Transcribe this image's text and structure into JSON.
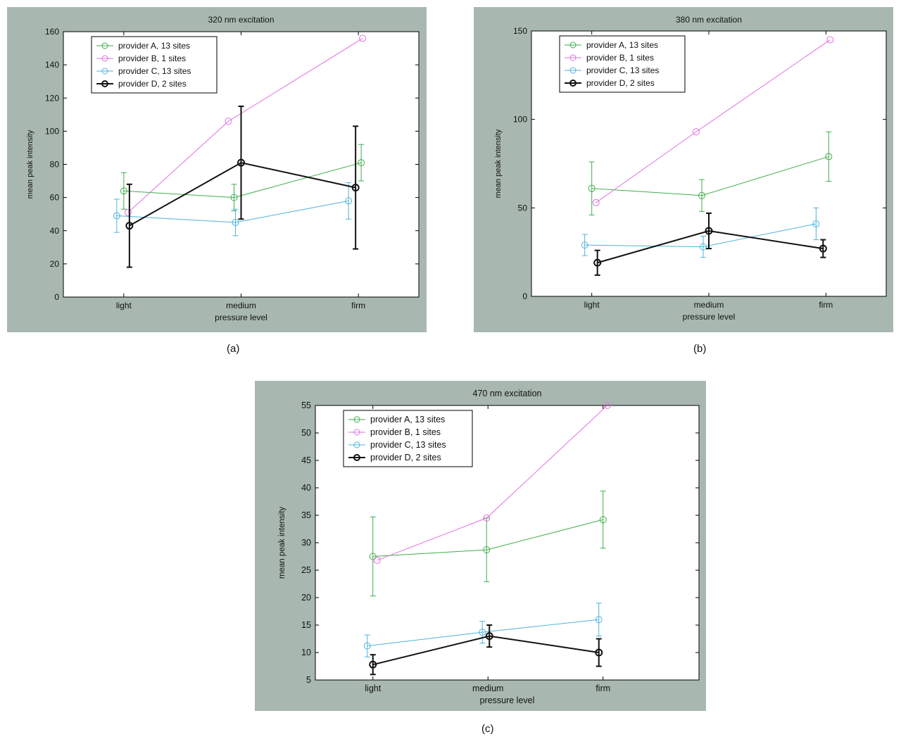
{
  "captions": {
    "a": "(a)",
    "b": "(b)",
    "c": "(c)"
  },
  "colors": {
    "frame": "#a8b8b0",
    "plot_bg": "#ffffff",
    "axis": "#000000"
  },
  "chart_data": [
    {
      "type": "line",
      "title": "320 nm excitation",
      "xlabel": "pressure level",
      "ylabel": "mean peak intensity",
      "categories": [
        "light",
        "medium",
        "firm"
      ],
      "ylim": [
        0,
        160
      ],
      "yticks": [
        "0",
        "20",
        "40",
        "60",
        "80",
        "100",
        "120",
        "140",
        "160"
      ],
      "legend_position": "top-left",
      "series": [
        {
          "name": "provider A, 13 sites",
          "color": "#3fae49",
          "values": [
            64,
            60,
            81
          ],
          "err": [
            11,
            8,
            11
          ]
        },
        {
          "name": "provider B, 1 sites",
          "color": "#e070e0",
          "values": [
            51,
            106,
            156
          ],
          "err": null
        },
        {
          "name": "provider C, 13 sites",
          "color": "#4fb3dd",
          "values": [
            49,
            45,
            58
          ],
          "err": [
            10,
            8,
            11
          ]
        },
        {
          "name": "provider D, 2 sites",
          "color": "#111111",
          "values": [
            43,
            81,
            66
          ],
          "err": [
            25,
            34,
            37
          ]
        }
      ]
    },
    {
      "type": "line",
      "title": "380 nm excitation",
      "xlabel": "pressure level",
      "ylabel": "mean peak intensity",
      "categories": [
        "light",
        "medium",
        "firm"
      ],
      "ylim": [
        0,
        150
      ],
      "yticks": [
        "0",
        "50",
        "100",
        "150"
      ],
      "legend_position": "top-left",
      "series": [
        {
          "name": "provider A, 13 sites",
          "color": "#3fae49",
          "values": [
            61,
            57,
            79
          ],
          "err": [
            15,
            9,
            14
          ]
        },
        {
          "name": "provider B, 1 sites",
          "color": "#e070e0",
          "values": [
            53,
            93,
            145
          ],
          "err": null
        },
        {
          "name": "provider C, 13 sites",
          "color": "#4fb3dd",
          "values": [
            29,
            28,
            41
          ],
          "err": [
            6,
            6,
            9
          ]
        },
        {
          "name": "provider D, 2 sites",
          "color": "#111111",
          "values": [
            19,
            37,
            27
          ],
          "err": [
            7,
            10,
            5
          ]
        }
      ]
    },
    {
      "type": "line",
      "title": "470 nm excitation",
      "xlabel": "pressure level",
      "ylabel": "mean peak intensity",
      "categories": [
        "light",
        "medium",
        "firm"
      ],
      "ylim": [
        5,
        55
      ],
      "yticks": [
        "5",
        "10",
        "15",
        "20",
        "25",
        "30",
        "35",
        "40",
        "45",
        "50",
        "55"
      ],
      "legend_position": "top-left",
      "series": [
        {
          "name": "provider A, 13 sites",
          "color": "#3fae49",
          "values": [
            27.5,
            28.7,
            34.2
          ],
          "err": [
            7.2,
            5.8,
            5.2
          ]
        },
        {
          "name": "provider B, 1 sites",
          "color": "#e070e0",
          "values": [
            26.8,
            34.5,
            55
          ],
          "err": null
        },
        {
          "name": "provider C, 13 sites",
          "color": "#4fb3dd",
          "values": [
            11.2,
            13.7,
            16
          ],
          "err": [
            2,
            2,
            3
          ]
        },
        {
          "name": "provider D, 2 sites",
          "color": "#111111",
          "values": [
            7.8,
            13,
            10
          ],
          "err": [
            1.8,
            2,
            2.5
          ]
        }
      ]
    }
  ]
}
